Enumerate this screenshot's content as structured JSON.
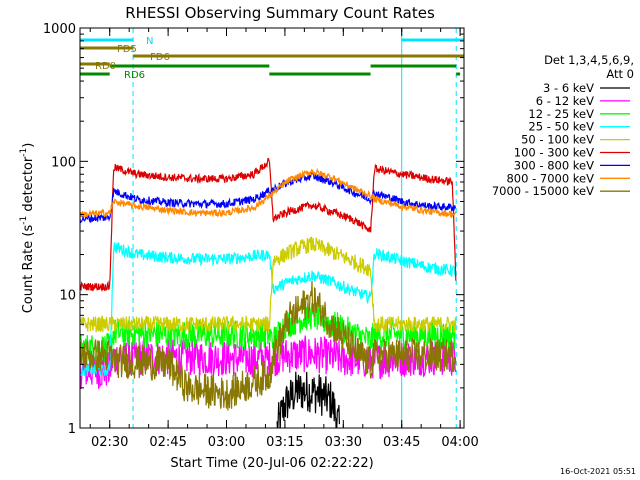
{
  "chart_data": {
    "type": "line",
    "title": "RHESSI Observing Summary Count Rates",
    "xlabel": "Start Time (20-Jul-06 02:22:22)",
    "ylabel": "Count Rate (s⁻¹ detector⁻¹)",
    "ylabel_prefix": "Count Rate (s",
    "ylabel_mid": " detector",
    "ylabel_suffix": ")",
    "ylabel_sup": "-1",
    "yscale": "log",
    "ylim": [
      1,
      1000
    ],
    "xlim": [
      "02:22:22",
      "04:01:00"
    ],
    "xtick_labels": [
      "02:30",
      "02:45",
      "03:00",
      "03:15",
      "03:30",
      "03:45",
      "04:00"
    ],
    "ytick_labels": [
      "1",
      "10",
      "100",
      "1000"
    ],
    "footer_date": "16-Oct-2021 05:51",
    "legend": {
      "header_line1": "Det 1,3,4,5,6,9,",
      "header_line2": "Att 0",
      "entries": [
        {
          "label": "3 - 6 keV",
          "color": "#000000"
        },
        {
          "label": "6 - 12 keV",
          "color": "#ff00ff"
        },
        {
          "label": "12 - 25 keV",
          "color": "#00ff00"
        },
        {
          "label": "25 - 50 keV",
          "color": "#00ffff"
        },
        {
          "label": "50 - 100 keV",
          "color": "#cccc00"
        },
        {
          "label": "100 - 300 keV",
          "color": "#dd0000"
        },
        {
          "label": "300 - 800 keV",
          "color": "#0000ff"
        },
        {
          "label": "800 - 7000 keV",
          "color": "#ff8800"
        },
        {
          "label": "7000 - 15000 keV",
          "color": "#887700"
        }
      ]
    },
    "flag_bars": [
      {
        "label": "N",
        "color": "#00e5ff",
        "segments": [
          [
            "02:22:22",
            "02:36:00"
          ],
          [
            "03:45:00",
            "04:01:00"
          ]
        ]
      },
      {
        "label": "FD5",
        "color": "#887700",
        "segments": [
          [
            "02:22:22",
            "02:36:00"
          ]
        ]
      },
      {
        "label": "FD6",
        "color": "#887700",
        "segments": [
          [
            "02:36:00",
            "04:01:00"
          ]
        ]
      },
      {
        "label": "RD0",
        "color": "#887700",
        "segments": [
          [
            "02:22:22",
            "02:30:00"
          ]
        ]
      },
      {
        "label": "RD0",
        "color": "#008800",
        "segments": [
          [
            "02:30:00",
            "03:11:00"
          ],
          [
            "03:37:00",
            "03:59:00"
          ]
        ]
      },
      {
        "label": "RD6",
        "color": "#008800",
        "segments": [
          [
            "02:22:22",
            "02:30:00"
          ],
          [
            "03:11:00",
            "03:37:00"
          ],
          [
            "03:59:00",
            "04:00:00"
          ]
        ]
      }
    ],
    "flag_label_names": [
      "N",
      "FD5",
      "FD6",
      "RD0",
      "RD6"
    ],
    "vertical_markers": [
      {
        "time": "02:22:22",
        "style": "solid",
        "color": "#00e5ff"
      },
      {
        "time": "02:36:00",
        "style": "dashed",
        "color": "#00e5ff"
      },
      {
        "time": "03:45:00",
        "style": "solid",
        "color": "#00e5ff"
      },
      {
        "time": "03:59:00",
        "style": "dashed",
        "color": "#00e5ff"
      }
    ],
    "series": [
      {
        "name": "3 - 6 keV",
        "color": "#000000",
        "points": [
          [
            "03:13:00",
            1.0
          ],
          [
            "03:15:00",
            1.5
          ],
          [
            "03:18:00",
            1.9
          ],
          [
            "03:21:00",
            1.9
          ],
          [
            "03:24:00",
            1.8
          ],
          [
            "03:27:00",
            1.6
          ],
          [
            "03:29:00",
            1.0
          ]
        ]
      },
      {
        "name": "6 - 12 keV",
        "color": "#ff00ff",
        "points": [
          [
            "02:22:22",
            2.7
          ],
          [
            "02:30:00",
            2.7
          ],
          [
            "02:31:00",
            3.4
          ],
          [
            "02:45:00",
            3.4
          ],
          [
            "03:11:00",
            3.3
          ],
          [
            "03:15:00",
            3.5
          ],
          [
            "03:22:00",
            3.6
          ],
          [
            "03:30:00",
            3.3
          ],
          [
            "03:37:00",
            3.2
          ],
          [
            "03:44:00",
            3.3
          ],
          [
            "03:52:00",
            3.4
          ],
          [
            "03:59:00",
            3.3
          ]
        ]
      },
      {
        "name": "12 - 25 keV",
        "color": "#00ff00",
        "points": [
          [
            "02:22:22",
            4.0
          ],
          [
            "02:30:00",
            4.0
          ],
          [
            "02:31:00",
            5.2
          ],
          [
            "02:45:00",
            5.0
          ],
          [
            "03:00:00",
            5.0
          ],
          [
            "03:11:00",
            5.0
          ],
          [
            "03:12:00",
            4.5
          ],
          [
            "03:15:00",
            6.0
          ],
          [
            "03:22:00",
            7.0
          ],
          [
            "03:30:00",
            5.5
          ],
          [
            "03:37:00",
            4.5
          ],
          [
            "03:38:00",
            5.0
          ],
          [
            "03:50:00",
            5.0
          ],
          [
            "03:59:00",
            5.0
          ]
        ]
      },
      {
        "name": "25 - 50 keV",
        "color": "#00ffff",
        "points": [
          [
            "02:22:22",
            2.7
          ],
          [
            "02:30:00",
            2.7
          ],
          [
            "02:31:00",
            23.0
          ],
          [
            "02:37:00",
            20.0
          ],
          [
            "02:45:00",
            19.0
          ],
          [
            "02:52:00",
            18.5
          ],
          [
            "03:00:00",
            18.5
          ],
          [
            "03:07:00",
            19.5
          ],
          [
            "03:11:00",
            20.0
          ],
          [
            "03:12:00",
            11.0
          ],
          [
            "03:16:00",
            12.5
          ],
          [
            "03:22:00",
            14.0
          ],
          [
            "03:27:00",
            12.5
          ],
          [
            "03:33:00",
            10.5
          ],
          [
            "03:37:00",
            9.5
          ],
          [
            "03:38:00",
            20.5
          ],
          [
            "03:45:00",
            18.0
          ],
          [
            "03:52:00",
            16.0
          ],
          [
            "03:59:00",
            15.0
          ]
        ]
      },
      {
        "name": "50 - 100 keV",
        "color": "#cccc00",
        "points": [
          [
            "02:22:22",
            6.0
          ],
          [
            "02:30:00",
            6.0
          ],
          [
            "02:31:00",
            6.0
          ],
          [
            "03:11:00",
            6.0
          ],
          [
            "03:12:00",
            18.0
          ],
          [
            "03:18:00",
            22.0
          ],
          [
            "03:22:00",
            24.0
          ],
          [
            "03:27:00",
            21.0
          ],
          [
            "03:33:00",
            17.5
          ],
          [
            "03:37:00",
            15.5
          ],
          [
            "03:38:00",
            6.0
          ],
          [
            "03:59:00",
            6.0
          ]
        ]
      },
      {
        "name": "100 - 300 keV",
        "color": "#dd0000",
        "points": [
          [
            "02:22:22",
            11.5
          ],
          [
            "02:30:00",
            11.5
          ],
          [
            "02:31:00",
            90.0
          ],
          [
            "02:37:00",
            80.0
          ],
          [
            "02:45:00",
            76.0
          ],
          [
            "02:52:00",
            74.0
          ],
          [
            "03:00:00",
            74.0
          ],
          [
            "03:07:00",
            80.0
          ],
          [
            "03:11:00",
            100.0
          ],
          [
            "03:12:00",
            37.0
          ],
          [
            "03:16:00",
            42.0
          ],
          [
            "03:22:00",
            47.0
          ],
          [
            "03:27:00",
            42.0
          ],
          [
            "03:33:00",
            36.0
          ],
          [
            "03:37:00",
            30.0
          ],
          [
            "03:38:00",
            88.0
          ],
          [
            "03:45:00",
            80.0
          ],
          [
            "03:52:00",
            74.0
          ],
          [
            "03:58:00",
            70.0
          ],
          [
            "03:59:00",
            11.0
          ]
        ]
      },
      {
        "name": "300 - 800 keV",
        "color": "#0000ff",
        "points": [
          [
            "02:22:22",
            37.0
          ],
          [
            "02:30:00",
            38.0
          ],
          [
            "02:31:00",
            60.0
          ],
          [
            "02:37:00",
            52.0
          ],
          [
            "02:45:00",
            49.0
          ],
          [
            "02:52:00",
            48.0
          ],
          [
            "03:00:00",
            48.0
          ],
          [
            "03:07:00",
            52.0
          ],
          [
            "03:11:00",
            60.0
          ],
          [
            "03:16:00",
            70.0
          ],
          [
            "03:22:00",
            78.0
          ],
          [
            "03:27:00",
            70.0
          ],
          [
            "03:33:00",
            58.0
          ],
          [
            "03:37:00",
            52.0
          ],
          [
            "03:38:00",
            58.0
          ],
          [
            "03:45:00",
            50.0
          ],
          [
            "03:52:00",
            46.0
          ],
          [
            "03:59:00",
            45.0
          ]
        ]
      },
      {
        "name": "800 - 7000 keV",
        "color": "#ff8800",
        "points": [
          [
            "02:22:22",
            40.0
          ],
          [
            "02:30:00",
            41.0
          ],
          [
            "02:31:00",
            50.0
          ],
          [
            "02:37:00",
            46.0
          ],
          [
            "02:45:00",
            43.0
          ],
          [
            "02:52:00",
            41.0
          ],
          [
            "03:00:00",
            41.0
          ],
          [
            "03:07:00",
            45.0
          ],
          [
            "03:11:00",
            55.0
          ],
          [
            "03:16:00",
            72.0
          ],
          [
            "03:22:00",
            84.0
          ],
          [
            "03:27:00",
            76.0
          ],
          [
            "03:33:00",
            62.0
          ],
          [
            "03:37:00",
            55.0
          ],
          [
            "03:38:00",
            52.0
          ],
          [
            "03:45:00",
            46.0
          ],
          [
            "03:52:00",
            42.0
          ],
          [
            "03:59:00",
            40.0
          ]
        ]
      },
      {
        "name": "7000 - 15000 keV",
        "color": "#887700",
        "points": [
          [
            "02:22:22",
            3.5
          ],
          [
            "02:30:00",
            3.5
          ],
          [
            "02:31:00",
            3.2
          ],
          [
            "02:45:00",
            3.0
          ],
          [
            "02:50:00",
            2.0
          ],
          [
            "03:00:00",
            1.8
          ],
          [
            "03:11:00",
            2.5
          ],
          [
            "03:12:00",
            3.5
          ],
          [
            "03:16:00",
            6.5
          ],
          [
            "03:22:00",
            9.5
          ],
          [
            "03:27:00",
            6.0
          ],
          [
            "03:33:00",
            3.8
          ],
          [
            "03:37:00",
            3.0
          ],
          [
            "03:38:00",
            3.5
          ],
          [
            "03:59:00",
            3.5
          ]
        ]
      }
    ]
  }
}
